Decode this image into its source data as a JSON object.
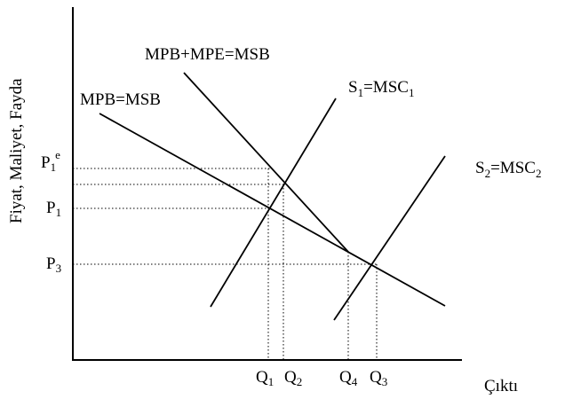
{
  "axes": {
    "y_label": "Fiyat, Maliyet, Fayda",
    "x_label": "Çıktı"
  },
  "curves": {
    "mpb": "MPB=MSB",
    "mpb_mpe": "MPB+MPE=MSB",
    "s1": {
      "main": "S",
      "sub1": "1",
      "eq": "=MSC",
      "sub2": "1"
    },
    "s2": {
      "main": "S",
      "sub1": "2",
      "eq": "=MSC",
      "sub2": "2"
    }
  },
  "price_labels": {
    "p1e": {
      "main": "P",
      "sub": "1",
      "sup": "e"
    },
    "p1": {
      "main": "P",
      "sub": "1"
    },
    "p3": {
      "main": "P",
      "sub": "3"
    }
  },
  "quantity_labels": {
    "q1": {
      "main": "Q",
      "sub": "1"
    },
    "q2": {
      "main": "Q",
      "sub": "2"
    },
    "q4": {
      "main": "Q",
      "sub": "4"
    },
    "q3": {
      "main": "Q",
      "sub": "3"
    }
  }
}
